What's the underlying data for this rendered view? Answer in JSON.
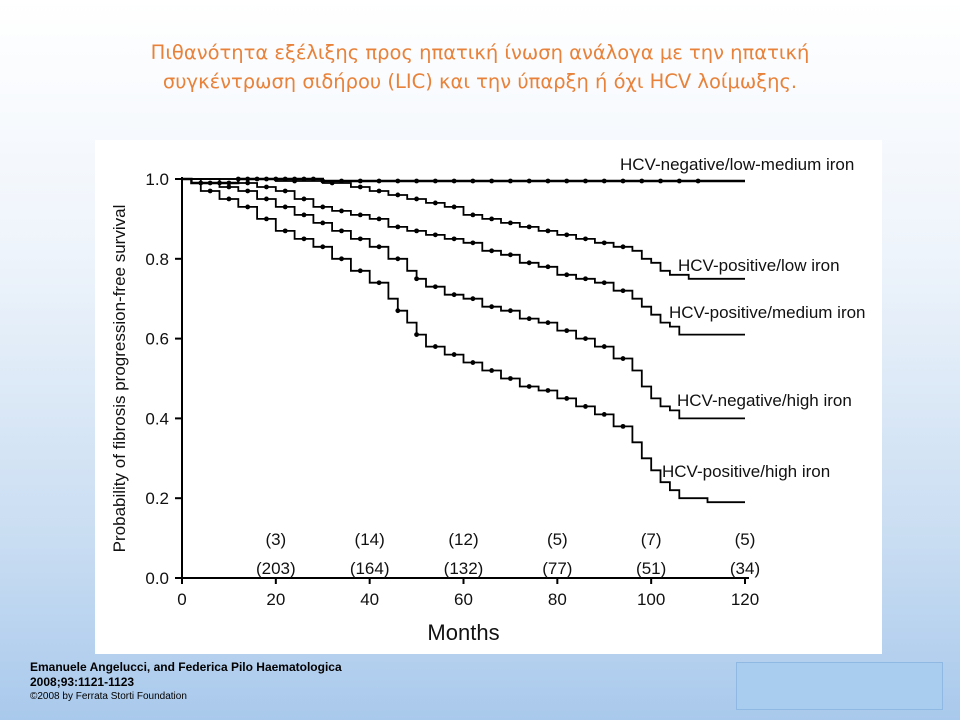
{
  "slide": {
    "title_line1": "Πιθανότητα εξέλιξης προς ηπατική ίνωση ανάλογα με την ηπατική",
    "title_line2": "συγκέντρωση σιδήρου (LIC) και την ύπαρξη ή όχι HCV λοίμωξης.",
    "title_color": "#e8823a",
    "citation_line1": "Emanuele Angelucci, and Federica Pilo Haematologica",
    "citation_line2": "2008;93:1121-1123",
    "citation_line3": "©2008 by Ferrata Storti Foundation"
  },
  "chart_data": {
    "type": "line",
    "step": true,
    "xlabel": "Months",
    "ylabel": "Probability of fibrosis progression-free survival",
    "xlim": [
      0,
      120
    ],
    "ylim": [
      0,
      1.0
    ],
    "x_ticks": [
      0,
      20,
      40,
      60,
      80,
      100,
      120
    ],
    "y_ticks": [
      0.0,
      0.2,
      0.4,
      0.6,
      0.8,
      1.0
    ],
    "x_tick_labels": [
      "0",
      "20",
      "40",
      "60",
      "80",
      "100",
      "120"
    ],
    "y_tick_labels": [
      "0.0",
      "0.2",
      "0.4",
      "0.6",
      "0.8",
      "1.0"
    ],
    "grid": false,
    "at_risk": {
      "x": [
        20,
        40,
        60,
        80,
        100,
        120
      ],
      "row1": [
        "(3)",
        "(14)",
        "(12)",
        "(5)",
        "(7)",
        "(5)"
      ],
      "row2": [
        "(203)",
        "(164)",
        "(132)",
        "(77)",
        "(51)",
        "(34)"
      ]
    },
    "series": [
      {
        "name": "HCV-negative/low-medium iron",
        "x": [
          0,
          2,
          12,
          30,
          120
        ],
        "y": [
          1.0,
          0.99,
          1.0,
          0.995,
          0.995
        ],
        "censor_x": [
          4,
          6,
          8,
          10,
          12,
          14,
          16,
          18,
          20,
          22,
          24,
          26,
          28,
          30,
          34,
          38,
          42,
          46,
          50,
          54,
          58,
          62,
          66,
          70,
          74,
          78,
          82,
          86,
          90,
          94,
          98,
          102,
          106,
          110
        ]
      },
      {
        "name": "HCV-positive/low iron",
        "x": [
          0,
          20,
          30,
          36,
          40,
          44,
          48,
          52,
          56,
          60,
          64,
          68,
          72,
          76,
          80,
          84,
          88,
          92,
          96,
          98,
          100,
          102,
          104,
          108,
          120
        ],
        "y": [
          1.0,
          0.995,
          0.99,
          0.98,
          0.97,
          0.96,
          0.95,
          0.94,
          0.93,
          0.91,
          0.9,
          0.89,
          0.88,
          0.87,
          0.86,
          0.85,
          0.84,
          0.83,
          0.82,
          0.8,
          0.79,
          0.77,
          0.76,
          0.75,
          0.75
        ],
        "censor_x": [
          24,
          32,
          38,
          42,
          46,
          50,
          54,
          58,
          62,
          66,
          70,
          74,
          78,
          82,
          86,
          90,
          94
        ]
      },
      {
        "name": "HCV-positive/medium iron",
        "x": [
          0,
          12,
          16,
          20,
          24,
          28,
          32,
          36,
          40,
          44,
          48,
          52,
          56,
          60,
          64,
          68,
          72,
          76,
          80,
          84,
          88,
          92,
          96,
          98,
          100,
          102,
          104,
          106,
          120
        ],
        "y": [
          1.0,
          0.99,
          0.98,
          0.97,
          0.95,
          0.93,
          0.92,
          0.91,
          0.9,
          0.88,
          0.87,
          0.86,
          0.85,
          0.84,
          0.82,
          0.81,
          0.79,
          0.78,
          0.76,
          0.75,
          0.74,
          0.72,
          0.7,
          0.68,
          0.66,
          0.64,
          0.63,
          0.61,
          0.61
        ],
        "censor_x": [
          14,
          18,
          22,
          26,
          30,
          34,
          38,
          42,
          46,
          50,
          54,
          58,
          62,
          66,
          70,
          74,
          78,
          82,
          86,
          90,
          94
        ]
      },
      {
        "name": "HCV-negative/high iron",
        "x": [
          0,
          8,
          12,
          16,
          20,
          24,
          28,
          32,
          36,
          40,
          44,
          48,
          50,
          52,
          56,
          60,
          64,
          68,
          72,
          76,
          80,
          84,
          88,
          92,
          96,
          98,
          100,
          102,
          104,
          106,
          120
        ],
        "y": [
          1.0,
          0.98,
          0.97,
          0.95,
          0.93,
          0.91,
          0.89,
          0.87,
          0.85,
          0.83,
          0.8,
          0.77,
          0.75,
          0.73,
          0.71,
          0.7,
          0.68,
          0.67,
          0.65,
          0.64,
          0.62,
          0.6,
          0.58,
          0.55,
          0.52,
          0.48,
          0.45,
          0.43,
          0.42,
          0.4,
          0.4
        ],
        "censor_x": [
          10,
          14,
          18,
          22,
          26,
          30,
          34,
          38,
          42,
          46,
          50,
          54,
          58,
          62,
          66,
          70,
          74,
          78,
          82,
          86,
          90,
          94
        ]
      },
      {
        "name": "HCV-positive/high iron",
        "x": [
          0,
          4,
          8,
          12,
          16,
          20,
          24,
          28,
          32,
          36,
          40,
          44,
          46,
          48,
          50,
          52,
          56,
          60,
          64,
          68,
          72,
          76,
          80,
          84,
          88,
          92,
          96,
          98,
          100,
          102,
          104,
          106,
          112,
          120
        ],
        "y": [
          1.0,
          0.97,
          0.95,
          0.93,
          0.9,
          0.87,
          0.85,
          0.83,
          0.8,
          0.77,
          0.74,
          0.7,
          0.67,
          0.64,
          0.61,
          0.58,
          0.56,
          0.54,
          0.52,
          0.5,
          0.48,
          0.47,
          0.45,
          0.43,
          0.41,
          0.38,
          0.34,
          0.3,
          0.27,
          0.24,
          0.22,
          0.2,
          0.19,
          0.19
        ],
        "censor_x": [
          6,
          10,
          14,
          18,
          22,
          26,
          30,
          34,
          38,
          42,
          46,
          50,
          54,
          58,
          62,
          66,
          70,
          74,
          78,
          82,
          86,
          90,
          94
        ]
      }
    ]
  }
}
